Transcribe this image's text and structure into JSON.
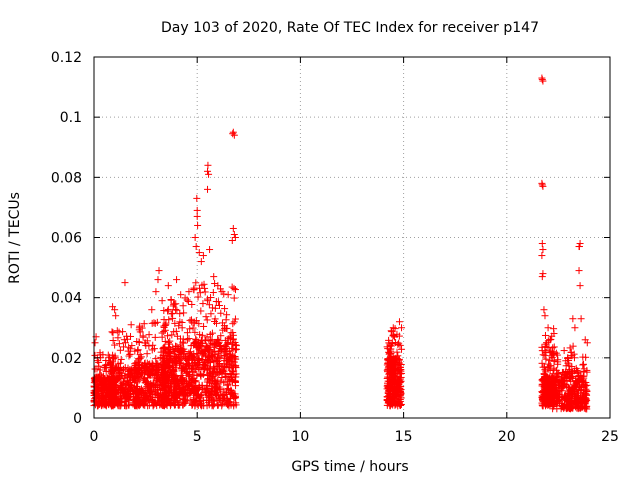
{
  "chart_data": {
    "type": "scatter",
    "title": "Day 103 of 2020, Rate Of TEC Index for receiver p147",
    "xlabel": "GPS time / hours",
    "ylabel": "ROTI / TECUs",
    "xlim": [
      0,
      25
    ],
    "ylim": [
      0,
      0.12
    ],
    "xticks": [
      0,
      5,
      10,
      15,
      20,
      25
    ],
    "yticks": [
      0,
      0.02,
      0.04,
      0.06,
      0.08,
      0.1,
      0.12
    ],
    "xtick_labels": [
      "0",
      "5",
      "10",
      "15",
      "20",
      "25"
    ],
    "ytick_labels": [
      "0",
      "0.02",
      "0.04",
      "0.06",
      "0.08",
      "0.1",
      "0.12"
    ],
    "grid": true,
    "marker": "+",
    "color": "#ff0000",
    "series": [
      {
        "clusters": [
          {
            "x_range": [
              0.0,
              1.0
            ],
            "y_range": [
              0.004,
              0.022
            ],
            "count": 300,
            "base_y": 0.01
          },
          {
            "x_range": [
              0.8,
              2.2
            ],
            "y_range": [
              0.004,
              0.03
            ],
            "count": 300,
            "base_y": 0.012
          },
          {
            "x_range": [
              2.0,
              3.5
            ],
            "y_range": [
              0.004,
              0.032
            ],
            "count": 320,
            "base_y": 0.013
          },
          {
            "x_range": [
              3.3,
              4.8
            ],
            "y_range": [
              0.004,
              0.04
            ],
            "count": 420,
            "base_y": 0.016
          },
          {
            "x_range": [
              4.8,
              6.9
            ],
            "y_range": [
              0.004,
              0.045
            ],
            "count": 520,
            "base_y": 0.018
          },
          {
            "x_range": [
              14.2,
              14.9
            ],
            "y_range": [
              0.004,
              0.03
            ],
            "count": 320,
            "base_y": 0.014
          },
          {
            "x_range": [
              21.7,
              22.3
            ],
            "y_range": [
              0.004,
              0.03
            ],
            "count": 240,
            "base_y": 0.01
          },
          {
            "x_range": [
              22.2,
              23.9
            ],
            "y_range": [
              0.003,
              0.024
            ],
            "count": 380,
            "base_y": 0.011
          }
        ],
        "points": [
          {
            "x": 0.1,
            "y": 0.027
          },
          {
            "x": 0.05,
            "y": 0.025
          },
          {
            "x": 0.3,
            "y": 0.021
          },
          {
            "x": 0.9,
            "y": 0.037
          },
          {
            "x": 1.0,
            "y": 0.036
          },
          {
            "x": 1.05,
            "y": 0.034
          },
          {
            "x": 1.5,
            "y": 0.045
          },
          {
            "x": 1.8,
            "y": 0.031
          },
          {
            "x": 2.2,
            "y": 0.03
          },
          {
            "x": 2.8,
            "y": 0.036
          },
          {
            "x": 3.0,
            "y": 0.042
          },
          {
            "x": 3.1,
            "y": 0.046
          },
          {
            "x": 3.15,
            "y": 0.049
          },
          {
            "x": 3.3,
            "y": 0.039
          },
          {
            "x": 3.6,
            "y": 0.044
          },
          {
            "x": 4.0,
            "y": 0.046
          },
          {
            "x": 4.2,
            "y": 0.041
          },
          {
            "x": 4.6,
            "y": 0.042
          },
          {
            "x": 4.9,
            "y": 0.06
          },
          {
            "x": 4.95,
            "y": 0.057
          },
          {
            "x": 5.0,
            "y": 0.067
          },
          {
            "x": 5.0,
            "y": 0.069
          },
          {
            "x": 4.98,
            "y": 0.073
          },
          {
            "x": 5.02,
            "y": 0.064
          },
          {
            "x": 5.1,
            "y": 0.055
          },
          {
            "x": 5.2,
            "y": 0.052
          },
          {
            "x": 5.3,
            "y": 0.054
          },
          {
            "x": 5.5,
            "y": 0.082
          },
          {
            "x": 5.52,
            "y": 0.084
          },
          {
            "x": 5.55,
            "y": 0.081
          },
          {
            "x": 5.5,
            "y": 0.076
          },
          {
            "x": 5.6,
            "y": 0.056
          },
          {
            "x": 5.8,
            "y": 0.047
          },
          {
            "x": 6.0,
            "y": 0.044
          },
          {
            "x": 6.2,
            "y": 0.042
          },
          {
            "x": 6.5,
            "y": 0.041
          },
          {
            "x": 6.75,
            "y": 0.095
          },
          {
            "x": 6.8,
            "y": 0.094
          },
          {
            "x": 6.72,
            "y": 0.0945
          },
          {
            "x": 6.75,
            "y": 0.063
          },
          {
            "x": 6.8,
            "y": 0.061
          },
          {
            "x": 6.7,
            "y": 0.059
          },
          {
            "x": 6.85,
            "y": 0.06
          },
          {
            "x": 14.4,
            "y": 0.029
          },
          {
            "x": 14.5,
            "y": 0.03
          },
          {
            "x": 14.8,
            "y": 0.032
          },
          {
            "x": 14.9,
            "y": 0.03
          },
          {
            "x": 21.7,
            "y": 0.113
          },
          {
            "x": 21.75,
            "y": 0.112
          },
          {
            "x": 21.72,
            "y": 0.1125
          },
          {
            "x": 21.7,
            "y": 0.078
          },
          {
            "x": 21.75,
            "y": 0.077
          },
          {
            "x": 21.72,
            "y": 0.0775
          },
          {
            "x": 21.72,
            "y": 0.058
          },
          {
            "x": 21.75,
            "y": 0.056
          },
          {
            "x": 21.7,
            "y": 0.054
          },
          {
            "x": 21.75,
            "y": 0.048
          },
          {
            "x": 21.72,
            "y": 0.047
          },
          {
            "x": 21.8,
            "y": 0.036
          },
          {
            "x": 21.85,
            "y": 0.034
          },
          {
            "x": 22.0,
            "y": 0.03
          },
          {
            "x": 22.1,
            "y": 0.026
          },
          {
            "x": 22.2,
            "y": 0.022
          },
          {
            "x": 22.3,
            "y": 0.019
          },
          {
            "x": 23.2,
            "y": 0.033
          },
          {
            "x": 23.3,
            "y": 0.03
          },
          {
            "x": 23.5,
            "y": 0.057
          },
          {
            "x": 23.55,
            "y": 0.058
          },
          {
            "x": 23.52,
            "y": 0.057
          },
          {
            "x": 23.5,
            "y": 0.049
          },
          {
            "x": 23.55,
            "y": 0.044
          },
          {
            "x": 23.6,
            "y": 0.033
          },
          {
            "x": 23.8,
            "y": 0.026
          },
          {
            "x": 23.9,
            "y": 0.025
          }
        ]
      }
    ]
  }
}
